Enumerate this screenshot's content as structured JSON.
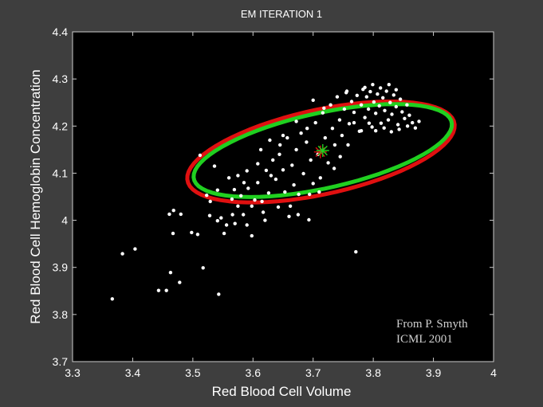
{
  "chart_data": {
    "type": "scatter",
    "title": "EM ITERATION 1",
    "xlabel": "Red Blood Cell Volume",
    "ylabel": "Red Blood Cell Hemoglobin Concentration",
    "xlim": [
      3.3,
      4.0
    ],
    "ylim": [
      3.7,
      4.4
    ],
    "xticks": [
      "3.3",
      "3.4",
      "3.5",
      "3.6",
      "3.7",
      "3.8",
      "3.9",
      "4"
    ],
    "yticks": [
      "3.7",
      "3.8",
      "3.9",
      "4",
      "4.1",
      "4.2",
      "4.3",
      "4.4"
    ],
    "grid": false,
    "background": "#000000",
    "annotation": [
      "From P. Smyth",
      "ICML 2001"
    ],
    "points": {
      "color": "#ffffff",
      "values": [
        [
          3.366,
          3.833
        ],
        [
          3.383,
          3.929
        ],
        [
          3.404,
          3.939
        ],
        [
          3.443,
          3.851
        ],
        [
          3.456,
          3.851
        ],
        [
          3.461,
          4.013
        ],
        [
          3.463,
          3.889
        ],
        [
          3.467,
          3.972
        ],
        [
          3.468,
          4.021
        ],
        [
          3.478,
          3.868
        ],
        [
          3.48,
          4.013
        ],
        [
          3.498,
          3.974
        ],
        [
          3.508,
          3.97
        ],
        [
          3.512,
          4.138
        ],
        [
          3.517,
          3.899
        ],
        [
          3.523,
          4.053
        ],
        [
          3.529,
          4.04
        ],
        [
          3.536,
          4.115
        ],
        [
          3.541,
          4.064
        ],
        [
          3.543,
          3.843
        ],
        [
          3.547,
          4.005
        ],
        [
          3.552,
          3.972
        ],
        [
          3.56,
          4.09
        ],
        [
          3.566,
          4.012
        ],
        [
          3.569,
          4.065
        ],
        [
          3.575,
          4.03
        ],
        [
          3.58,
          4.052
        ],
        [
          3.585,
          4.08
        ],
        [
          3.59,
          3.99
        ],
        [
          3.592,
          4.068
        ],
        [
          3.598,
          3.967
        ],
        [
          3.603,
          4.043
        ],
        [
          3.608,
          4.08
        ],
        [
          3.613,
          4.15
        ],
        [
          3.617,
          4.017
        ],
        [
          3.622,
          4.106
        ],
        [
          3.626,
          4.058
        ],
        [
          3.628,
          4.17
        ],
        [
          3.633,
          4.128
        ],
        [
          3.638,
          4.087
        ],
        [
          3.642,
          4.028
        ],
        [
          3.644,
          4.14
        ],
        [
          3.65,
          4.107
        ],
        [
          3.653,
          4.06
        ],
        [
          3.657,
          4.175
        ],
        [
          3.66,
          4.008
        ],
        [
          3.665,
          4.117
        ],
        [
          3.668,
          4.075
        ],
        [
          3.672,
          4.15
        ],
        [
          3.676,
          4.055
        ],
        [
          3.68,
          4.185
        ],
        [
          3.684,
          4.099
        ],
        [
          3.689,
          4.166
        ],
        [
          3.693,
          4.001
        ],
        [
          3.696,
          4.128
        ],
        [
          3.7,
          4.078
        ],
        [
          3.704,
          4.207
        ],
        [
          3.708,
          4.14
        ],
        [
          3.712,
          4.09
        ],
        [
          3.716,
          4.228
        ],
        [
          3.72,
          4.175
        ],
        [
          3.725,
          4.122
        ],
        [
          3.729,
          4.245
        ],
        [
          3.732,
          4.195
        ],
        [
          3.736,
          4.16
        ],
        [
          3.74,
          4.262
        ],
        [
          3.744,
          4.213
        ],
        [
          3.748,
          4.18
        ],
        [
          3.752,
          4.236
        ],
        [
          3.756,
          4.274
        ],
        [
          3.76,
          4.205
        ],
        [
          3.764,
          4.252
        ],
        [
          3.768,
          4.229
        ],
        [
          3.771,
          3.933
        ],
        [
          3.773,
          4.265
        ],
        [
          3.777,
          4.189
        ],
        [
          3.78,
          4.245
        ],
        [
          3.783,
          4.278
        ],
        [
          3.786,
          4.218
        ],
        [
          3.789,
          4.262
        ],
        [
          3.792,
          4.236
        ],
        [
          3.795,
          4.273
        ],
        [
          3.798,
          4.198
        ],
        [
          3.801,
          4.251
        ],
        [
          3.804,
          4.227
        ],
        [
          3.807,
          4.268
        ],
        [
          3.81,
          4.243
        ],
        [
          3.813,
          4.206
        ],
        [
          3.816,
          4.26
        ],
        [
          3.819,
          4.233
        ],
        [
          3.822,
          4.274
        ],
        [
          3.825,
          4.213
        ],
        [
          3.828,
          4.25
        ],
        [
          3.831,
          4.225
        ],
        [
          3.834,
          4.266
        ],
        [
          3.838,
          4.241
        ],
        [
          3.841,
          4.203
        ],
        [
          3.845,
          4.257
        ],
        [
          3.848,
          4.23
        ],
        [
          3.852,
          4.216
        ],
        [
          3.856,
          4.245
        ],
        [
          3.86,
          4.223
        ],
        [
          3.865,
          4.207
        ],
        [
          3.87,
          4.196
        ],
        [
          3.876,
          4.21
        ],
        [
          3.755,
          4.271
        ],
        [
          3.786,
          4.282
        ],
        [
          3.799,
          4.288
        ],
        [
          3.812,
          4.281
        ],
        [
          3.826,
          4.288
        ],
        [
          3.838,
          4.277
        ],
        [
          3.768,
          4.207
        ],
        [
          3.78,
          4.19
        ],
        [
          3.793,
          4.206
        ],
        [
          3.804,
          4.19
        ],
        [
          3.818,
          4.196
        ],
        [
          3.83,
          4.188
        ],
        [
          3.843,
          4.193
        ],
        [
          3.857,
          4.2
        ],
        [
          3.672,
          4.21
        ],
        [
          3.69,
          4.195
        ],
        [
          3.65,
          4.18
        ],
        [
          3.63,
          4.095
        ],
        [
          3.615,
          4.04
        ],
        [
          3.598,
          4.03
        ],
        [
          3.584,
          4.012
        ],
        [
          3.57,
          3.993
        ],
        [
          3.556,
          3.99
        ],
        [
          3.541,
          3.999
        ],
        [
          3.528,
          4.01
        ],
        [
          3.662,
          4.03
        ],
        [
          3.675,
          4.012
        ],
        [
          3.694,
          4.055
        ],
        [
          3.71,
          4.06
        ],
        [
          3.735,
          4.11
        ],
        [
          3.745,
          4.135
        ],
        [
          3.758,
          4.16
        ],
        [
          3.7,
          4.255
        ],
        [
          3.718,
          4.238
        ],
        [
          3.645,
          4.16
        ],
        [
          3.608,
          4.12
        ],
        [
          3.59,
          4.105
        ],
        [
          3.575,
          4.095
        ],
        [
          3.565,
          4.045
        ],
        [
          3.62,
          4.0
        ]
      ]
    },
    "ellipses": [
      {
        "color": "#e01010",
        "center": [
          3.713,
          4.145
        ],
        "rx": 0.24,
        "ry": 0.092,
        "angle_deg": 23
      },
      {
        "color": "#20d020",
        "center": [
          3.716,
          4.148
        ],
        "rx": 0.232,
        "ry": 0.082,
        "angle_deg": 23
      }
    ],
    "centers": [
      {
        "color": "#e01010",
        "x": 3.712,
        "y": 4.145
      },
      {
        "color": "#20d020",
        "x": 3.716,
        "y": 4.148
      }
    ]
  }
}
